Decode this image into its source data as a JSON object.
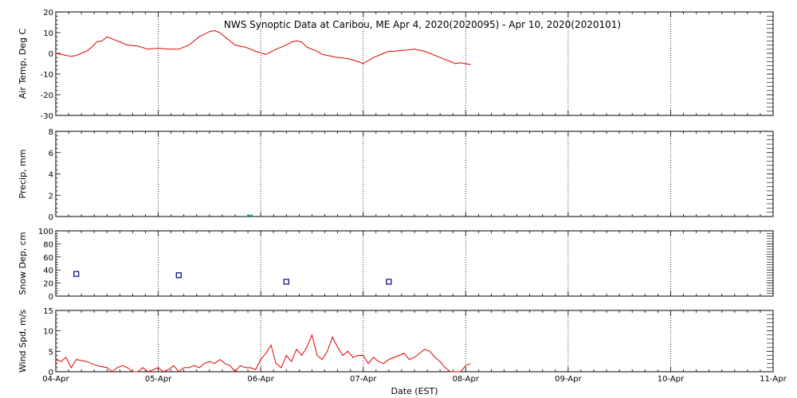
{
  "colors": {
    "line": "#e00000",
    "precip": "#00c8c8",
    "snow": "#000080"
  },
  "chart_data": [
    {
      "type": "line",
      "title": "NWS Synoptic Data at Caribou, ME   Apr  4, 2020(2020095) - Apr 10, 2020(2020101)",
      "ylabel": "Air Temp, Deg C",
      "ylim": [
        -30,
        20
      ],
      "yticks": [
        -30,
        -20,
        -10,
        0,
        10,
        20
      ],
      "grid": true,
      "series": [
        {
          "x": [
            0,
            0.1,
            0.15,
            0.2,
            0.3,
            0.35,
            0.4,
            0.45,
            0.5,
            0.55,
            0.6,
            0.7,
            0.8,
            0.9,
            1.0,
            1.1,
            1.2,
            1.3,
            1.4,
            1.5,
            1.55,
            1.6,
            1.65,
            1.7,
            1.75,
            1.85,
            1.95,
            2.05,
            2.15,
            2.25,
            2.3,
            2.35,
            2.4,
            2.45,
            2.55,
            2.6,
            2.65,
            2.75,
            2.85,
            2.95,
            3.0,
            3.1,
            3.2,
            3.25,
            3.3,
            3.4,
            3.5,
            3.55,
            3.6,
            3.65,
            3.75,
            3.85,
            3.9,
            3.95,
            4.0,
            4.05
          ],
          "values": [
            0,
            -1,
            -1.5,
            -1,
            1,
            3,
            5.5,
            6,
            8,
            7,
            6,
            4,
            3.5,
            2,
            2.5,
            2,
            2,
            4,
            8,
            10.5,
            11,
            10,
            8,
            6,
            4,
            3,
            1,
            -0.5,
            2,
            4,
            5.5,
            6,
            5.5,
            3,
            1,
            -0.5,
            -1,
            -2,
            -2.5,
            -4,
            -5,
            -2,
            0,
            1,
            1,
            1.5,
            2,
            1.5,
            1,
            0,
            -2,
            -4,
            -5,
            -4.5,
            -5,
            -5.5
          ]
        }
      ]
    },
    {
      "type": "bar",
      "ylabel": "Precip, mm",
      "ylim": [
        0,
        8
      ],
      "yticks": [
        0,
        2,
        4,
        6,
        8
      ],
      "grid": true,
      "series": [
        {
          "x": [
            1.9
          ],
          "values": [
            0.1
          ]
        }
      ]
    },
    {
      "type": "scatter",
      "ylabel": "Snow Dep, cm",
      "ylim": [
        0,
        100
      ],
      "yticks": [
        0,
        20,
        40,
        60,
        80,
        100
      ],
      "grid": true,
      "series": [
        {
          "x": [
            0.2,
            1.2,
            2.25,
            3.25
          ],
          "values": [
            34,
            32,
            22,
            22
          ]
        }
      ]
    },
    {
      "type": "line",
      "ylabel": "Wind Spd, m/s",
      "xlabel": "Date (EST)",
      "ylim": [
        0,
        15
      ],
      "yticks": [
        0,
        5,
        10,
        15
      ],
      "grid": true,
      "xticklabels": [
        "04-Apr",
        "05-Apr",
        "06-Apr",
        "07-Apr",
        "08-Apr",
        "09-Apr",
        "10-Apr",
        "11-Apr"
      ],
      "series": [
        {
          "x": [
            0,
            0.05,
            0.1,
            0.15,
            0.2,
            0.3,
            0.4,
            0.5,
            0.55,
            0.6,
            0.65,
            0.7,
            0.75,
            0.8,
            0.85,
            0.9,
            1.0,
            1.05,
            1.1,
            1.15,
            1.2,
            1.25,
            1.3,
            1.35,
            1.4,
            1.45,
            1.5,
            1.55,
            1.6,
            1.65,
            1.7,
            1.75,
            1.8,
            1.85,
            1.9,
            1.95,
            2.0,
            2.05,
            2.1,
            2.15,
            2.2,
            2.25,
            2.3,
            2.35,
            2.4,
            2.45,
            2.5,
            2.55,
            2.6,
            2.65,
            2.7,
            2.75,
            2.8,
            2.85,
            2.9,
            2.95,
            3.0,
            3.05,
            3.1,
            3.15,
            3.2,
            3.25,
            3.3,
            3.35,
            3.4,
            3.45,
            3.5,
            3.55,
            3.6,
            3.65,
            3.7,
            3.75,
            3.8,
            3.85,
            3.9,
            3.95,
            4.0,
            4.05
          ],
          "values": [
            3,
            2.5,
            3.5,
            1,
            3,
            2.5,
            1.5,
            1,
            0,
            1,
            1.5,
            1,
            0,
            0,
            1,
            0,
            1,
            0,
            0.5,
            1.5,
            0,
            1,
            1,
            1.5,
            1,
            2,
            2.5,
            2,
            3,
            2,
            1.5,
            0,
            1.5,
            1,
            1,
            0.5,
            3,
            4.5,
            6.5,
            2,
            1,
            4,
            2.5,
            5.5,
            4,
            6,
            9,
            4,
            3,
            5,
            8.5,
            6,
            4,
            5,
            3.5,
            4,
            4,
            2,
            3.5,
            2.5,
            2,
            3,
            3.5,
            4,
            4.5,
            3,
            3.5,
            4.5,
            5.5,
            5,
            3.5,
            2.5,
            1,
            0,
            0,
            0,
            1.5,
            2
          ]
        }
      ]
    }
  ]
}
